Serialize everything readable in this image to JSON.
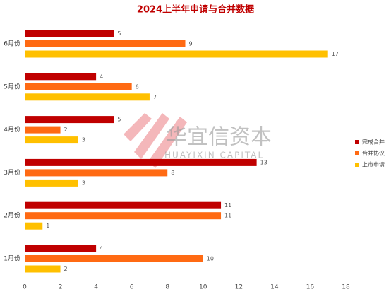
{
  "chart_data": {
    "type": "barh",
    "title": "2024上半年申请与合并数据",
    "categories": [
      "1月份",
      "2月份",
      "3月份",
      "4月份",
      "5月份",
      "6月份"
    ],
    "series": [
      {
        "name": "完成合并",
        "color": "#c00000",
        "values": [
          4,
          11,
          13,
          5,
          4,
          5
        ]
      },
      {
        "name": "合并协议",
        "color": "#ff6a13",
        "values": [
          10,
          11,
          8,
          2,
          6,
          9
        ]
      },
      {
        "name": "上市申请",
        "color": "#ffc000",
        "values": [
          2,
          1,
          3,
          3,
          7,
          17
        ]
      }
    ],
    "xlim": [
      0,
      18
    ],
    "xticks": [
      0,
      2,
      4,
      6,
      8,
      10,
      12,
      14,
      16,
      18
    ],
    "legend": "right",
    "watermark": {
      "name": "华宜信资本",
      "subtitle": "HUAYIXIN CAPITAL"
    }
  }
}
